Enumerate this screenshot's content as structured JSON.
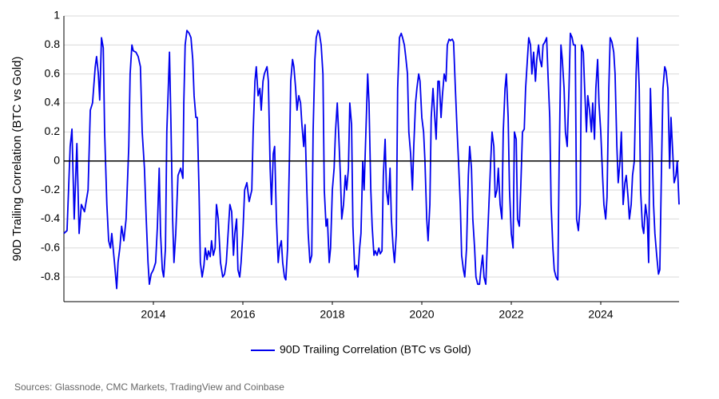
{
  "chart_data": {
    "type": "line",
    "y_label": "90D Trailing Correlation (BTC vs Gold)",
    "source": "Sources: Glassnode, CMC Markets, TradingView and Coinbase",
    "xlim": [
      2012,
      2025.75
    ],
    "xticks": [
      2014,
      2016,
      2018,
      2020,
      2022,
      2024
    ],
    "ylim": [
      -0.97,
      1
    ],
    "yticks": [
      -0.8,
      -0.6,
      -0.4,
      -0.2,
      0,
      0.2,
      0.4,
      0.6,
      0.8,
      1
    ],
    "grid": true,
    "zero_line": true,
    "legend": "bottom",
    "x": [
      2012.0,
      2012.07,
      2012.14,
      2012.18,
      2012.23,
      2012.29,
      2012.34,
      2012.39,
      2012.46,
      2012.54,
      2012.59,
      2012.64,
      2012.7,
      2012.73,
      2012.77,
      2012.8,
      2012.84,
      2012.88,
      2012.91,
      2012.96,
      2013.0,
      2013.04,
      2013.07,
      2013.13,
      2013.18,
      2013.21,
      2013.25,
      2013.29,
      2013.34,
      2013.39,
      2013.45,
      2013.48,
      2013.52,
      2013.55,
      2013.61,
      2013.66,
      2013.71,
      2013.75,
      2013.8,
      2013.84,
      2013.88,
      2013.91,
      2013.95,
      2014.0,
      2014.05,
      2014.09,
      2014.13,
      2014.16,
      2014.2,
      2014.23,
      2014.27,
      2014.3,
      2014.36,
      2014.39,
      2014.43,
      2014.46,
      2014.5,
      2014.55,
      2014.61,
      2014.66,
      2014.68,
      2014.71,
      2014.75,
      2014.8,
      2014.84,
      2014.88,
      2014.91,
      2014.95,
      2014.98,
      2015.02,
      2015.05,
      2015.09,
      2015.13,
      2015.16,
      2015.2,
      2015.23,
      2015.27,
      2015.3,
      2015.34,
      2015.38,
      2015.41,
      2015.45,
      2015.5,
      2015.55,
      2015.59,
      2015.63,
      2015.68,
      2015.71,
      2015.75,
      2015.79,
      2015.82,
      2015.86,
      2015.89,
      2015.93,
      2015.96,
      2016.0,
      2016.04,
      2016.09,
      2016.14,
      2016.2,
      2016.23,
      2016.27,
      2016.3,
      2016.34,
      2016.38,
      2016.41,
      2016.45,
      2016.48,
      2016.54,
      2016.57,
      2016.61,
      2016.64,
      2016.68,
      2016.71,
      2016.75,
      2016.79,
      2016.82,
      2016.86,
      2016.89,
      2016.93,
      2016.96,
      2017.0,
      2017.04,
      2017.07,
      2017.11,
      2017.14,
      2017.18,
      2017.21,
      2017.25,
      2017.29,
      2017.32,
      2017.36,
      2017.39,
      2017.43,
      2017.46,
      2017.5,
      2017.54,
      2017.57,
      2017.61,
      2017.64,
      2017.68,
      2017.71,
      2017.75,
      2017.79,
      2017.82,
      2017.86,
      2017.89,
      2017.93,
      2017.96,
      2018.0,
      2018.04,
      2018.07,
      2018.11,
      2018.14,
      2018.18,
      2018.21,
      2018.25,
      2018.29,
      2018.32,
      2018.36,
      2018.39,
      2018.43,
      2018.46,
      2018.5,
      2018.54,
      2018.57,
      2018.61,
      2018.64,
      2018.68,
      2018.71,
      2018.75,
      2018.79,
      2018.82,
      2018.86,
      2018.89,
      2018.93,
      2018.96,
      2019.0,
      2019.04,
      2019.07,
      2019.11,
      2019.14,
      2019.18,
      2019.21,
      2019.25,
      2019.29,
      2019.32,
      2019.36,
      2019.39,
      2019.43,
      2019.46,
      2019.5,
      2019.54,
      2019.57,
      2019.61,
      2019.64,
      2019.68,
      2019.71,
      2019.75,
      2019.79,
      2019.82,
      2019.86,
      2019.89,
      2019.93,
      2019.96,
      2020.0,
      2020.04,
      2020.07,
      2020.11,
      2020.14,
      2020.18,
      2020.21,
      2020.25,
      2020.29,
      2020.32,
      2020.36,
      2020.39,
      2020.43,
      2020.46,
      2020.5,
      2020.54,
      2020.57,
      2020.61,
      2020.64,
      2020.68,
      2020.71,
      2020.75,
      2020.79,
      2020.82,
      2020.86,
      2020.89,
      2020.93,
      2020.96,
      2021.0,
      2021.04,
      2021.07,
      2021.11,
      2021.14,
      2021.18,
      2021.21,
      2021.25,
      2021.29,
      2021.32,
      2021.36,
      2021.39,
      2021.43,
      2021.46,
      2021.5,
      2021.54,
      2021.57,
      2021.61,
      2021.64,
      2021.68,
      2021.71,
      2021.75,
      2021.79,
      2021.82,
      2021.86,
      2021.89,
      2021.93,
      2021.96,
      2022.0,
      2022.04,
      2022.07,
      2022.11,
      2022.14,
      2022.18,
      2022.21,
      2022.25,
      2022.29,
      2022.32,
      2022.36,
      2022.39,
      2022.43,
      2022.46,
      2022.5,
      2022.54,
      2022.57,
      2022.61,
      2022.64,
      2022.68,
      2022.71,
      2022.75,
      2022.79,
      2022.82,
      2022.86,
      2022.89,
      2022.93,
      2022.96,
      2023.0,
      2023.04,
      2023.07,
      2023.11,
      2023.14,
      2023.18,
      2023.21,
      2023.25,
      2023.29,
      2023.32,
      2023.36,
      2023.39,
      2023.43,
      2023.46,
      2023.5,
      2023.54,
      2023.57,
      2023.61,
      2023.64,
      2023.68,
      2023.71,
      2023.75,
      2023.79,
      2023.82,
      2023.86,
      2023.89,
      2023.93,
      2023.96,
      2024.0,
      2024.04,
      2024.07,
      2024.11,
      2024.14,
      2024.18,
      2024.21,
      2024.25,
      2024.29,
      2024.32,
      2024.36,
      2024.39,
      2024.43,
      2024.46,
      2024.5,
      2024.54,
      2024.57,
      2024.61,
      2024.64,
      2024.68,
      2024.71,
      2024.75,
      2024.79,
      2024.82,
      2024.86,
      2024.89,
      2024.93,
      2024.96,
      2025.0,
      2025.04,
      2025.07,
      2025.11,
      2025.14,
      2025.18,
      2025.21,
      2025.25,
      2025.29,
      2025.32,
      2025.36,
      2025.39,
      2025.43,
      2025.46,
      2025.5,
      2025.54,
      2025.57,
      2025.61,
      2025.64,
      2025.68,
      2025.71,
      2025.75
    ],
    "series": [
      {
        "name": "90D Trailing Correlation (BTC vs Gold)",
        "color": "#0000ee",
        "values": [
          -0.5,
          -0.48,
          0.1,
          0.22,
          -0.4,
          0.12,
          -0.5,
          -0.3,
          -0.35,
          -0.2,
          0.35,
          0.4,
          0.65,
          0.72,
          0.6,
          0.42,
          0.85,
          0.78,
          0.2,
          -0.3,
          -0.55,
          -0.6,
          -0.5,
          -0.7,
          -0.88,
          -0.7,
          -0.6,
          -0.45,
          -0.55,
          -0.4,
          0.1,
          0.6,
          0.8,
          0.76,
          0.75,
          0.72,
          0.65,
          0.2,
          -0.05,
          -0.4,
          -0.7,
          -0.85,
          -0.78,
          -0.75,
          -0.7,
          -0.45,
          -0.05,
          -0.5,
          -0.75,
          -0.8,
          -0.6,
          0.2,
          0.75,
          0.3,
          -0.4,
          -0.7,
          -0.5,
          -0.1,
          -0.05,
          -0.12,
          0.4,
          0.8,
          0.9,
          0.88,
          0.85,
          0.7,
          0.45,
          0.3,
          0.3,
          -0.2,
          -0.7,
          -0.8,
          -0.72,
          -0.6,
          -0.68,
          -0.62,
          -0.66,
          -0.55,
          -0.65,
          -0.6,
          -0.3,
          -0.4,
          -0.7,
          -0.8,
          -0.78,
          -0.7,
          -0.45,
          -0.3,
          -0.35,
          -0.65,
          -0.5,
          -0.4,
          -0.75,
          -0.8,
          -0.7,
          -0.5,
          -0.2,
          -0.15,
          -0.28,
          -0.2,
          0.2,
          0.55,
          0.65,
          0.45,
          0.5,
          0.35,
          0.55,
          0.6,
          0.65,
          0.55,
          -0.05,
          -0.3,
          0.05,
          0.1,
          -0.4,
          -0.7,
          -0.6,
          -0.55,
          -0.7,
          -0.8,
          -0.82,
          -0.6,
          0.0,
          0.55,
          0.7,
          0.65,
          0.5,
          0.35,
          0.45,
          0.4,
          0.25,
          0.1,
          0.25,
          -0.2,
          -0.5,
          -0.7,
          -0.65,
          0.2,
          0.7,
          0.85,
          0.9,
          0.88,
          0.8,
          0.6,
          -0.2,
          -0.45,
          -0.4,
          -0.7,
          -0.6,
          -0.2,
          -0.05,
          0.2,
          0.4,
          0.2,
          -0.1,
          -0.4,
          -0.3,
          -0.1,
          -0.2,
          -0.05,
          0.4,
          0.25,
          -0.45,
          -0.75,
          -0.72,
          -0.8,
          -0.6,
          -0.5,
          0.0,
          -0.2,
          0.2,
          0.6,
          0.4,
          -0.2,
          -0.45,
          -0.65,
          -0.62,
          -0.65,
          -0.6,
          -0.64,
          -0.62,
          -0.1,
          0.15,
          -0.2,
          -0.3,
          -0.05,
          -0.4,
          -0.6,
          -0.7,
          -0.5,
          0.5,
          0.85,
          0.88,
          0.85,
          0.8,
          0.72,
          0.6,
          0.2,
          0.05,
          -0.2,
          0.1,
          0.4,
          0.5,
          0.6,
          0.55,
          0.3,
          0.2,
          0.0,
          -0.4,
          -0.55,
          -0.3,
          0.3,
          0.5,
          0.3,
          0.15,
          0.55,
          0.55,
          0.3,
          0.45,
          0.6,
          0.55,
          0.8,
          0.84,
          0.83,
          0.84,
          0.82,
          0.5,
          0.2,
          0.0,
          -0.3,
          -0.65,
          -0.75,
          -0.8,
          -0.6,
          -0.1,
          0.1,
          -0.05,
          -0.4,
          -0.6,
          -0.8,
          -0.85,
          -0.85,
          -0.75,
          -0.65,
          -0.8,
          -0.85,
          -0.6,
          -0.3,
          0.0,
          0.2,
          0.1,
          -0.25,
          -0.2,
          -0.05,
          -0.3,
          -0.4,
          0.2,
          0.5,
          0.6,
          0.3,
          -0.2,
          -0.5,
          -0.6,
          0.2,
          0.15,
          -0.4,
          -0.45,
          -0.2,
          0.2,
          0.22,
          0.5,
          0.7,
          0.85,
          0.8,
          0.6,
          0.75,
          0.55,
          0.7,
          0.8,
          0.7,
          0.65,
          0.8,
          0.82,
          0.85,
          0.6,
          0.3,
          -0.3,
          -0.6,
          -0.75,
          -0.8,
          -0.82,
          0.0,
          0.8,
          0.7,
          0.5,
          0.2,
          0.1,
          0.5,
          0.88,
          0.85,
          0.8,
          0.8,
          -0.4,
          -0.48,
          -0.3,
          0.8,
          0.75,
          0.5,
          0.2,
          0.45,
          0.35,
          0.2,
          0.4,
          0.15,
          0.5,
          0.7,
          0.4,
          0.2,
          -0.1,
          -0.3,
          -0.4,
          -0.25,
          0.5,
          0.85,
          0.82,
          0.75,
          0.6,
          0.1,
          -0.15,
          0.0,
          0.2,
          -0.3,
          -0.15,
          -0.1,
          -0.25,
          -0.4,
          -0.3,
          -0.1,
          0.0,
          0.6,
          0.85,
          0.5,
          -0.2,
          -0.45,
          -0.5,
          -0.3,
          -0.4,
          -0.7,
          0.5,
          0.2,
          -0.3,
          -0.5,
          -0.65,
          -0.78,
          -0.75,
          0.0,
          0.5,
          0.65,
          0.62,
          0.5,
          -0.05,
          0.3,
          0.05,
          -0.15,
          -0.1,
          0.0,
          -0.3
        ]
      }
    ]
  }
}
